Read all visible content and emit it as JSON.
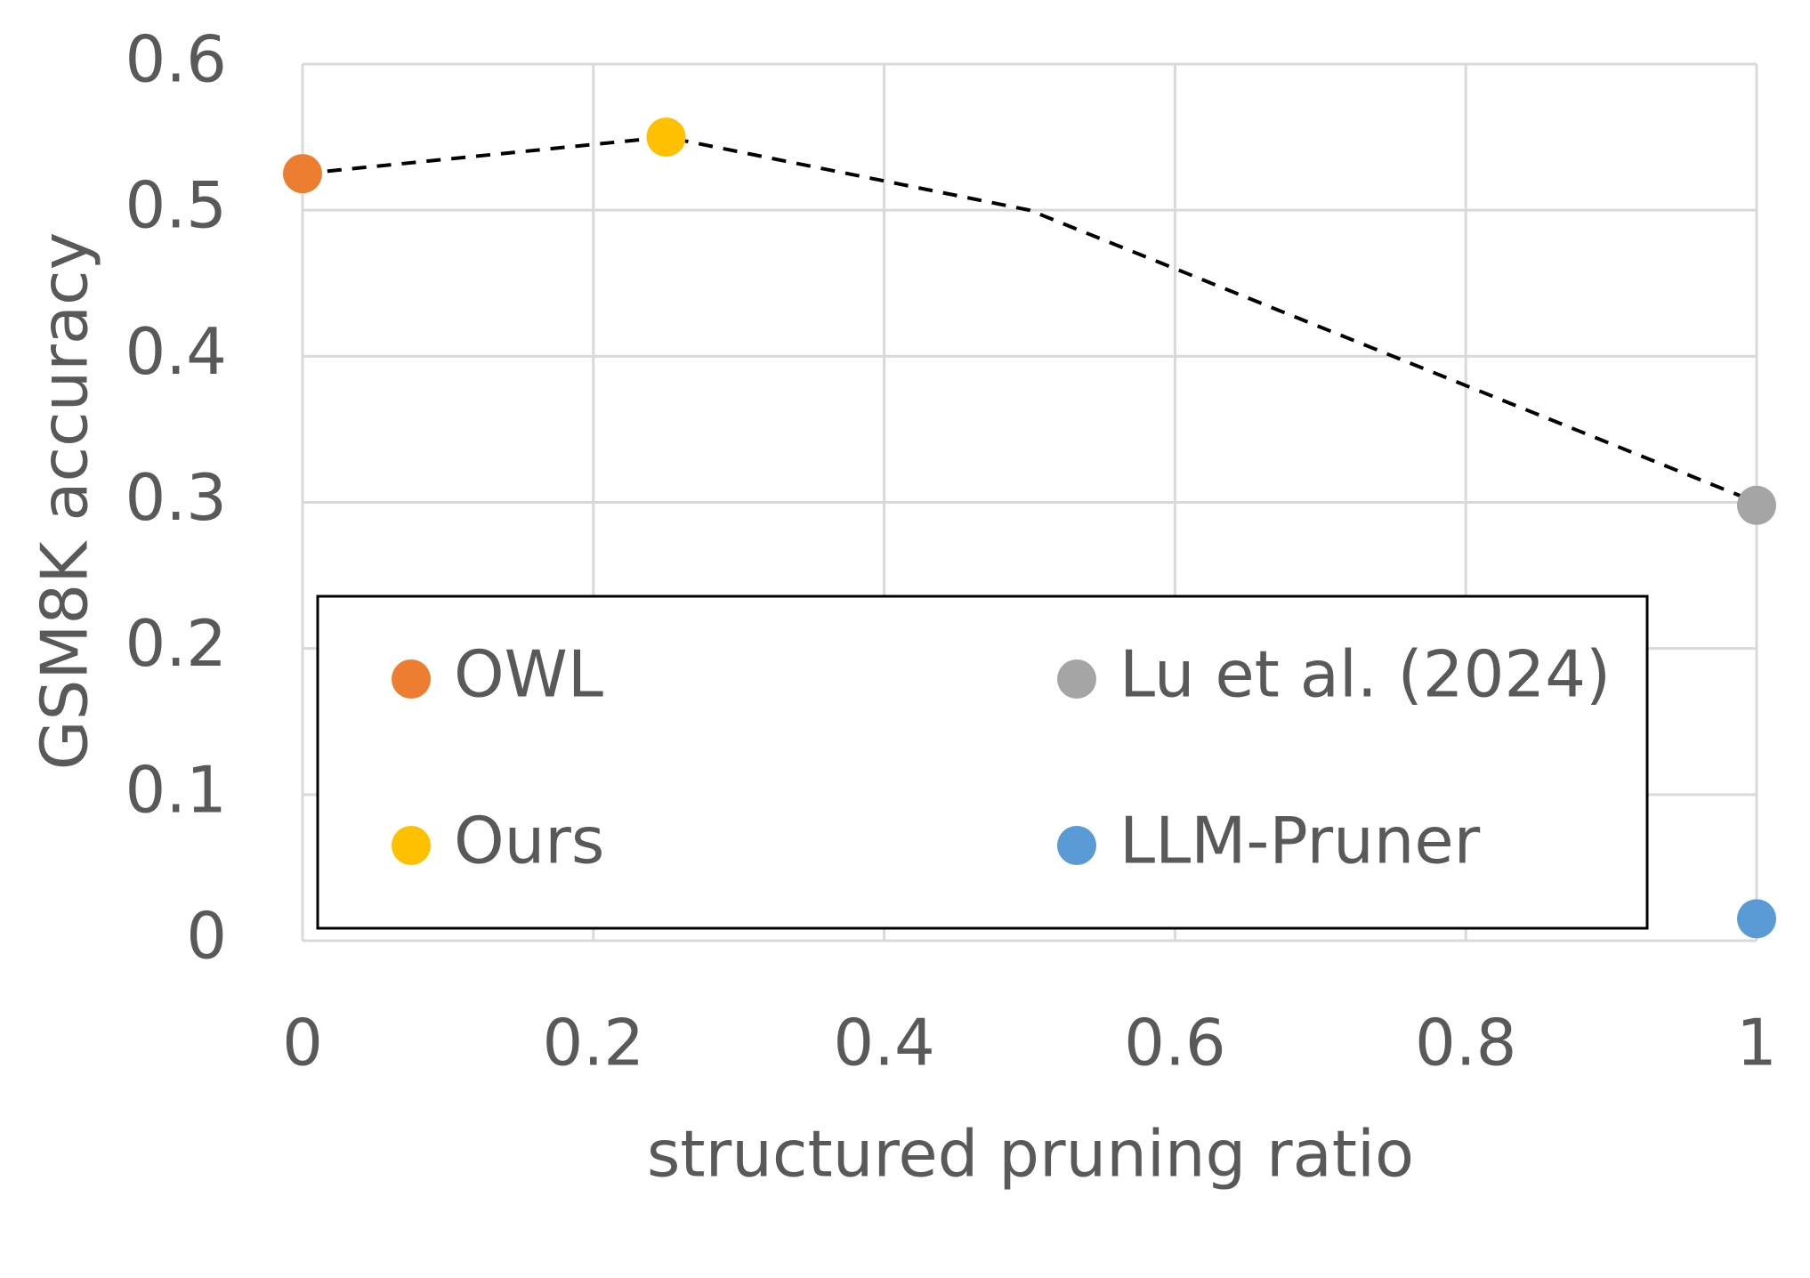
{
  "chart_data": {
    "type": "scatter",
    "x_label": "structured pruning ratio",
    "y_label": "GSM8K accuracy",
    "xlim": [
      0,
      1
    ],
    "xticks": [
      0,
      0.2,
      0.4,
      0.6,
      0.8,
      1
    ],
    "ylim": [
      0,
      0.6
    ],
    "yticks": [
      0,
      0.1,
      0.2,
      0.3,
      0.4,
      0.5,
      0.6
    ],
    "grid": true,
    "legend": "lower",
    "series": [
      {
        "name": "OWL",
        "color": "#ED7D31",
        "x": [
          0
        ],
        "values": [
          0.525
        ]
      },
      {
        "name": "Ours",
        "color": "#FFC000",
        "x": [
          0.25
        ],
        "values": [
          0.55
        ]
      },
      {
        "name": "Lu et al. (2024)",
        "color": "#A5A5A5",
        "x": [
          1
        ],
        "values": [
          0.298
        ]
      },
      {
        "name": "LLM-Pruner",
        "color": "#5B9BD5",
        "x": [
          1
        ],
        "values": [
          0.015
        ]
      }
    ],
    "trend_line": {
      "color": "#000000",
      "dashed": true,
      "x": [
        0,
        0.25,
        0.5,
        1
      ],
      "values": [
        0.525,
        0.55,
        0.5,
        0.3
      ]
    }
  }
}
